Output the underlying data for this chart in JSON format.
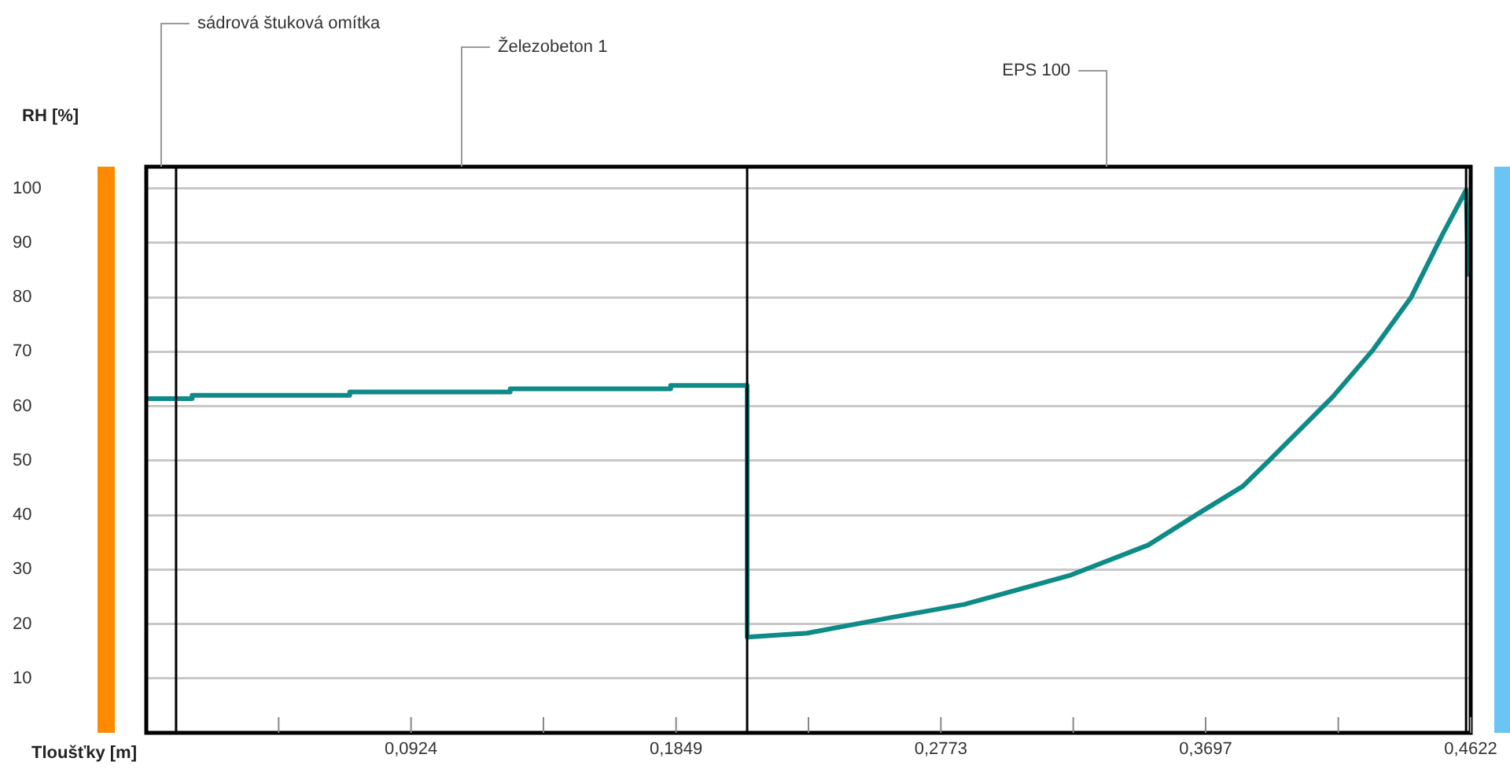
{
  "chart_data": {
    "type": "line",
    "xlabel": "Tloušťky [m]",
    "ylabel": "RH [%]",
    "x": [
      0,
      0.016,
      0.016,
      0.071,
      0.071,
      0.127,
      0.127,
      0.183,
      0.183,
      0.2097,
      0.2097,
      0.2306,
      0.258,
      0.2855,
      0.3222,
      0.3497,
      0.3678,
      0.3827,
      0.392,
      0.414,
      0.4282,
      0.4414,
      0.4524,
      0.4606,
      0.4614
    ],
    "series": [
      {
        "color": "#0e8a87",
        "values": [
          61.4,
          61.4,
          62.0,
          62.0,
          62.6,
          62.6,
          63.2,
          63.2,
          63.8,
          63.8,
          17.6,
          18.3,
          21.0,
          23.6,
          28.9,
          34.5,
          40.5,
          45.3,
          50.1,
          61.7,
          70.4,
          80.0,
          91.6,
          99.7,
          83.8
        ]
      }
    ],
    "xlim": [
      0,
      0.4622
    ],
    "xticks": [
      {
        "value": 0.0462,
        "label": null
      },
      {
        "value": 0.0924,
        "label": "0,0924"
      },
      {
        "value": 0.1386,
        "label": null
      },
      {
        "value": 0.1849,
        "label": "0,1849"
      },
      {
        "value": 0.2311,
        "label": null
      },
      {
        "value": 0.2773,
        "label": "0,2773"
      },
      {
        "value": 0.3235,
        "label": null
      },
      {
        "value": 0.3697,
        "label": "0,3697"
      },
      {
        "value": 0.416,
        "label": null
      },
      {
        "value": 0.4622,
        "label": "0,4622"
      }
    ],
    "ylim": [
      0,
      104
    ],
    "yticks": [
      10,
      20,
      30,
      40,
      50,
      60,
      70,
      80,
      90,
      100
    ],
    "ref_lines": [
      {
        "axis": "x",
        "value": 0.0104,
        "color": "#000000"
      },
      {
        "axis": "x",
        "value": 0.2097,
        "color": "#000000"
      },
      {
        "axis": "x",
        "value": 0.4606,
        "color": "#000000"
      }
    ],
    "annotations": [
      "sádrová štuková omítka",
      "Železobeton 1",
      "EPS 100"
    ],
    "grid": "y",
    "legend": false,
    "marker": "none",
    "line_style": "solid"
  }
}
